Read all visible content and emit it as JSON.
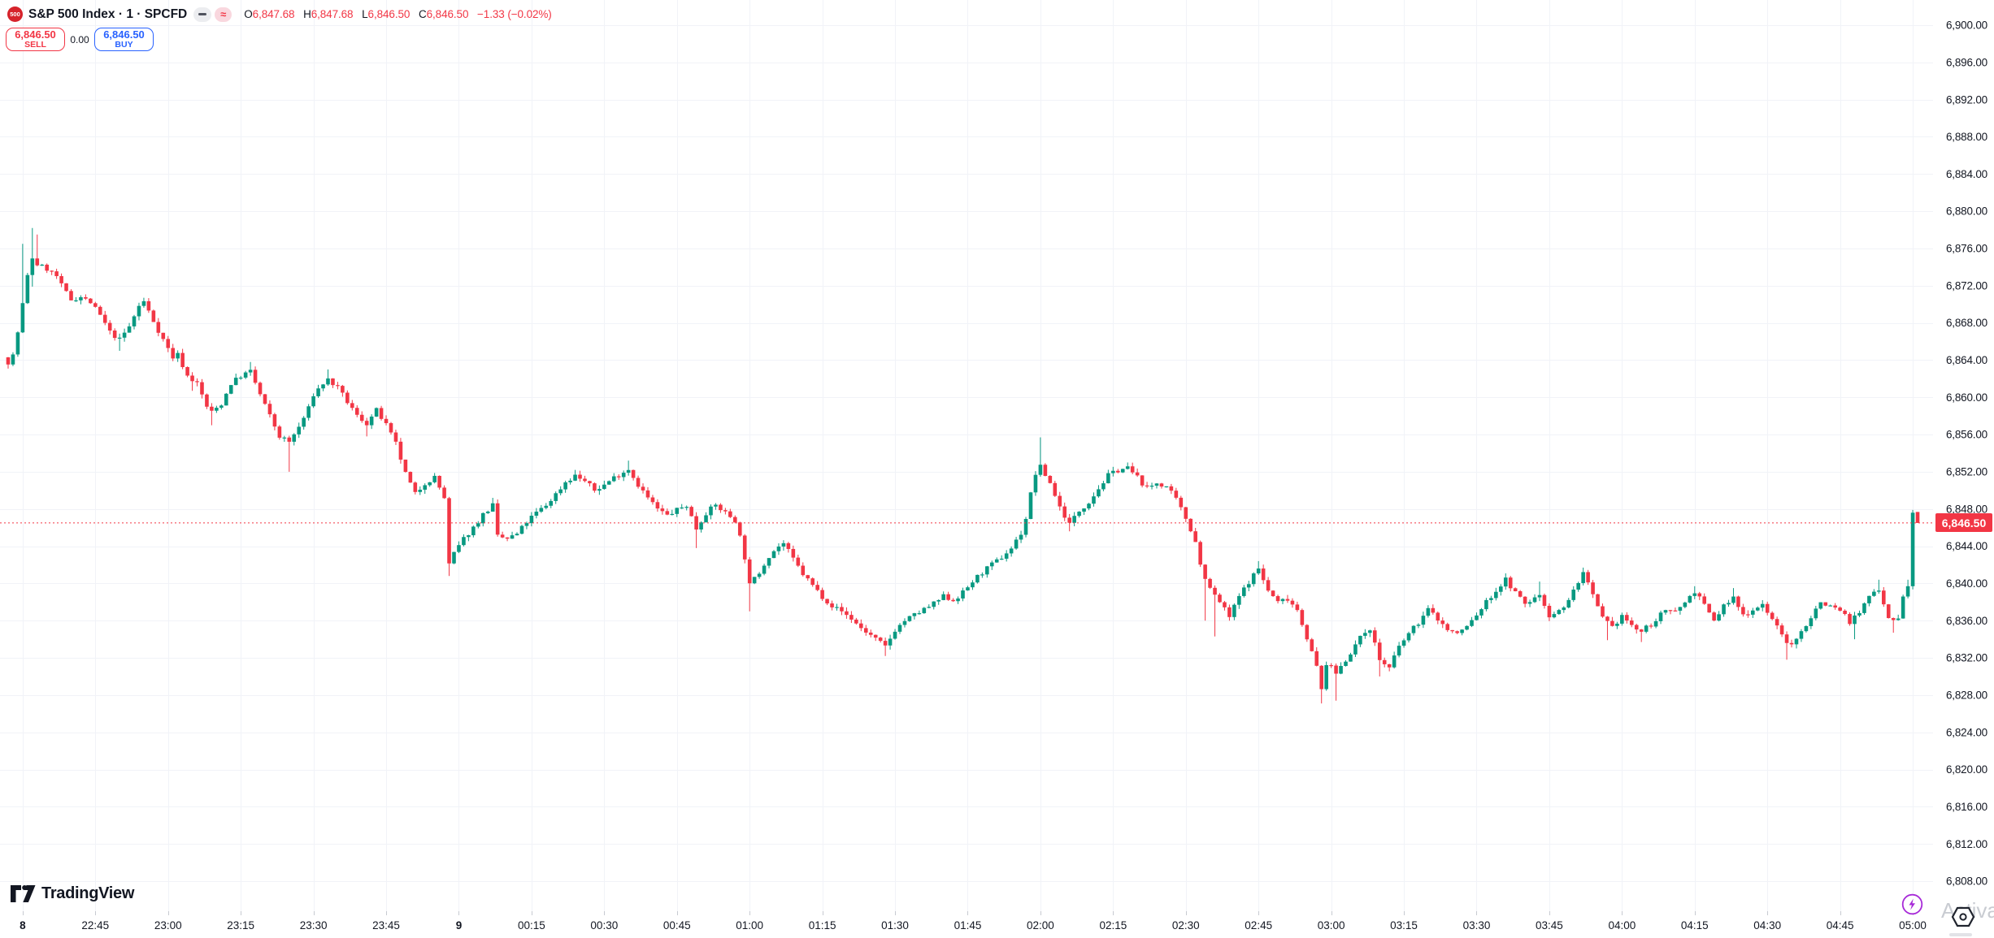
{
  "header": {
    "logo_text": "500",
    "title": "S&P 500 Index · 1 · SPCFD",
    "toggles": {
      "approx_glyph": "≈"
    },
    "ohlc": {
      "o_label": "O",
      "open": "6,847.68",
      "h_label": "H",
      "high": "6,847.68",
      "l_label": "L",
      "low": "6,846.50",
      "c_label": "C",
      "close": "6,846.50",
      "change": "−1.33 (−0.02%)"
    },
    "sell": {
      "price": "6,846.50",
      "label": "SELL"
    },
    "spread": "0.00",
    "buy": {
      "price": "6,846.50",
      "label": "BUY"
    }
  },
  "price_scale": {
    "current": "6,846.50"
  },
  "watermarks": {
    "brand": "TradingView",
    "corner": "Activa"
  },
  "colors": {
    "up": "#089981",
    "down": "#f23645",
    "sell_red": "#f23645",
    "buy_blue": "#2962ff",
    "price_line": "#f23645",
    "grid": "#f1f3f8",
    "axis_text": "#131722",
    "tick_stub": "#c7cad1",
    "logo_red": "#d6232b",
    "lightning_purple": "#a72ad8",
    "watermark_gray": "#c9ccd2"
  },
  "chart_data": {
    "type": "candlestick",
    "symbol": "S&P 500 Index",
    "interval": "1",
    "feed": "SPCFD",
    "legend_note": "1-minute OHLC candles, session 8 22:27 through 9 05:01",
    "current_price": 6846.5,
    "last_candle": {
      "open": 6847.68,
      "high": 6847.68,
      "low": 6846.5,
      "close": 6846.5
    },
    "y_axis": {
      "min": 6806,
      "max": 6902,
      "grid": true,
      "ticks": [
        {
          "v": 6900,
          "label": "6,900.00"
        },
        {
          "v": 6896,
          "label": "6,896.00"
        },
        {
          "v": 6892,
          "label": "6,892.00"
        },
        {
          "v": 6888,
          "label": "6,888.00"
        },
        {
          "v": 6884,
          "label": "6,884.00"
        },
        {
          "v": 6880,
          "label": "6,880.00"
        },
        {
          "v": 6876,
          "label": "6,876.00"
        },
        {
          "v": 6872,
          "label": "6,872.00"
        },
        {
          "v": 6868,
          "label": "6,868.00"
        },
        {
          "v": 6864,
          "label": "6,864.00"
        },
        {
          "v": 6860,
          "label": "6,860.00"
        },
        {
          "v": 6856,
          "label": "6,856.00"
        },
        {
          "v": 6852,
          "label": "6,852.00"
        },
        {
          "v": 6848,
          "label": "6,848.00"
        },
        {
          "v": 6844,
          "label": "6,844.00"
        },
        {
          "v": 6840,
          "label": "6,840.00"
        },
        {
          "v": 6836,
          "label": "6,836.00"
        },
        {
          "v": 6832,
          "label": "6,832.00"
        },
        {
          "v": 6828,
          "label": "6,828.00"
        },
        {
          "v": 6824,
          "label": "6,824.00"
        },
        {
          "v": 6820,
          "label": "6,820.00"
        },
        {
          "v": 6816,
          "label": "6,816.00"
        },
        {
          "v": 6812,
          "label": "6,812.00"
        },
        {
          "v": 6808,
          "label": "6,808.00"
        }
      ]
    },
    "x_axis": {
      "labels": [
        {
          "label": "8",
          "m": 3,
          "bold": true
        },
        {
          "label": "22:45",
          "m": 18
        },
        {
          "label": "23:00",
          "m": 33
        },
        {
          "label": "23:15",
          "m": 48
        },
        {
          "label": "23:30",
          "m": 63
        },
        {
          "label": "23:45",
          "m": 78
        },
        {
          "label": "9",
          "m": 93,
          "bold": true
        },
        {
          "label": "00:15",
          "m": 108
        },
        {
          "label": "00:30",
          "m": 123
        },
        {
          "label": "00:45",
          "m": 138
        },
        {
          "label": "01:00",
          "m": 153
        },
        {
          "label": "01:15",
          "m": 168
        },
        {
          "label": "01:30",
          "m": 183
        },
        {
          "label": "01:45",
          "m": 198
        },
        {
          "label": "02:00",
          "m": 213
        },
        {
          "label": "02:15",
          "m": 228
        },
        {
          "label": "02:30",
          "m": 243
        },
        {
          "label": "02:45",
          "m": 258
        },
        {
          "label": "03:00",
          "m": 273
        },
        {
          "label": "03:15",
          "m": 288
        },
        {
          "label": "03:30",
          "m": 303
        },
        {
          "label": "03:45",
          "m": 318
        },
        {
          "label": "04:00",
          "m": 333
        },
        {
          "label": "04:15",
          "m": 348
        },
        {
          "label": "04:30",
          "m": 363
        },
        {
          "label": "04:45",
          "m": 378
        },
        {
          "label": "05:00",
          "m": 393
        }
      ]
    },
    "anchors": [
      [
        0,
        6863.8
      ],
      [
        1,
        6864.5
      ],
      [
        2,
        6867.0
      ],
      [
        3,
        6870.0
      ],
      [
        4,
        6873.0
      ],
      [
        5,
        6875.0
      ],
      [
        6,
        6874.3
      ],
      [
        8,
        6873.8
      ],
      [
        10,
        6873.0
      ],
      [
        11,
        6872.0
      ],
      [
        13,
        6870.5
      ],
      [
        15,
        6870.8
      ],
      [
        17,
        6870.2
      ],
      [
        19,
        6868.8
      ],
      [
        21,
        6867.0
      ],
      [
        23,
        6866.2
      ],
      [
        25,
        6867.6
      ],
      [
        27,
        6869.8
      ],
      [
        28,
        6870.3
      ],
      [
        30,
        6868.2
      ],
      [
        32,
        6866.2
      ],
      [
        34,
        6864.3
      ],
      [
        35,
        6864.6
      ],
      [
        37,
        6862.3
      ],
      [
        39,
        6861.5
      ],
      [
        41,
        6859.0
      ],
      [
        42,
        6858.4
      ],
      [
        44,
        6859.3
      ],
      [
        46,
        6861.5
      ],
      [
        48,
        6862.3
      ],
      [
        50,
        6862.8
      ],
      [
        52,
        6860.3
      ],
      [
        54,
        6858.0
      ],
      [
        56,
        6855.8
      ],
      [
        58,
        6855.2
      ],
      [
        60,
        6856.8
      ],
      [
        62,
        6858.8
      ],
      [
        63,
        6860.3
      ],
      [
        65,
        6861.5
      ],
      [
        66,
        6861.9
      ],
      [
        68,
        6861.0
      ],
      [
        70,
        6859.5
      ],
      [
        72,
        6858.0
      ],
      [
        74,
        6857.2
      ],
      [
        76,
        6858.6
      ],
      [
        78,
        6857.0
      ],
      [
        80,
        6855.0
      ],
      [
        82,
        6851.8
      ],
      [
        84,
        6849.6
      ],
      [
        86,
        6850.8
      ],
      [
        88,
        6851.4
      ],
      [
        90,
        6849.2
      ],
      [
        91,
        6842.0
      ],
      [
        92,
        6843.2
      ],
      [
        94,
        6844.8
      ],
      [
        96,
        6846.0
      ],
      [
        98,
        6847.4
      ],
      [
        100,
        6848.4
      ],
      [
        101,
        6845.0
      ],
      [
        103,
        6844.8
      ],
      [
        105,
        6845.3
      ],
      [
        107,
        6846.6
      ],
      [
        109,
        6847.6
      ],
      [
        111,
        6848.4
      ],
      [
        113,
        6849.6
      ],
      [
        115,
        6850.9
      ],
      [
        117,
        6851.6
      ],
      [
        119,
        6851.0
      ],
      [
        121,
        6850.0
      ],
      [
        123,
        6850.6
      ],
      [
        125,
        6851.4
      ],
      [
        127,
        6852.0
      ],
      [
        128,
        6852.3
      ],
      [
        130,
        6850.6
      ],
      [
        132,
        6849.2
      ],
      [
        134,
        6848.0
      ],
      [
        136,
        6847.3
      ],
      [
        138,
        6847.9
      ],
      [
        140,
        6848.4
      ],
      [
        142,
        6845.9
      ],
      [
        144,
        6847.6
      ],
      [
        146,
        6848.4
      ],
      [
        148,
        6847.6
      ],
      [
        150,
        6846.8
      ],
      [
        151,
        6845.0
      ],
      [
        152,
        6842.8
      ],
      [
        153,
        6839.8
      ],
      [
        155,
        6841.2
      ],
      [
        157,
        6843.0
      ],
      [
        159,
        6844.0
      ],
      [
        160,
        6844.3
      ],
      [
        162,
        6842.6
      ],
      [
        164,
        6841.0
      ],
      [
        166,
        6839.8
      ],
      [
        168,
        6838.6
      ],
      [
        170,
        6837.6
      ],
      [
        172,
        6837.0
      ],
      [
        174,
        6836.2
      ],
      [
        176,
        6835.2
      ],
      [
        178,
        6834.4
      ],
      [
        180,
        6833.6
      ],
      [
        181,
        6833.2
      ],
      [
        183,
        6835.0
      ],
      [
        185,
        6836.0
      ],
      [
        187,
        6836.6
      ],
      [
        189,
        6837.2
      ],
      [
        191,
        6837.8
      ],
      [
        193,
        6838.6
      ],
      [
        195,
        6838.2
      ],
      [
        197,
        6839.0
      ],
      [
        199,
        6840.2
      ],
      [
        201,
        6841.2
      ],
      [
        203,
        6842.0
      ],
      [
        205,
        6842.8
      ],
      [
        207,
        6843.8
      ],
      [
        209,
        6845.4
      ],
      [
        210,
        6847.0
      ],
      [
        211,
        6849.6
      ],
      [
        212,
        6851.8
      ],
      [
        213,
        6852.5
      ],
      [
        215,
        6850.8
      ],
      [
        217,
        6848.2
      ],
      [
        219,
        6846.4
      ],
      [
        221,
        6847.8
      ],
      [
        223,
        6848.8
      ],
      [
        225,
        6850.2
      ],
      [
        227,
        6851.6
      ],
      [
        229,
        6852.2
      ],
      [
        231,
        6852.4
      ],
      [
        233,
        6851.4
      ],
      [
        235,
        6850.2
      ],
      [
        237,
        6850.8
      ],
      [
        239,
        6850.4
      ],
      [
        241,
        6849.0
      ],
      [
        243,
        6847.0
      ],
      [
        245,
        6844.6
      ],
      [
        246,
        6842.0
      ],
      [
        248,
        6839.4
      ],
      [
        250,
        6838.0
      ],
      [
        252,
        6836.4
      ],
      [
        254,
        6838.6
      ],
      [
        256,
        6840.2
      ],
      [
        258,
        6841.6
      ],
      [
        260,
        6839.2
      ],
      [
        262,
        6838.0
      ],
      [
        264,
        6838.4
      ],
      [
        266,
        6837.2
      ],
      [
        268,
        6834.2
      ],
      [
        270,
        6831.0
      ],
      [
        271,
        6828.6
      ],
      [
        272,
        6831.4
      ],
      [
        274,
        6830.4
      ],
      [
        276,
        6831.8
      ],
      [
        278,
        6833.4
      ],
      [
        280,
        6834.8
      ],
      [
        281,
        6835.2
      ],
      [
        283,
        6831.8
      ],
      [
        285,
        6830.9
      ],
      [
        287,
        6833.2
      ],
      [
        289,
        6834.6
      ],
      [
        291,
        6835.8
      ],
      [
        293,
        6837.2
      ],
      [
        295,
        6836.2
      ],
      [
        297,
        6835.0
      ],
      [
        299,
        6834.6
      ],
      [
        301,
        6835.4
      ],
      [
        303,
        6836.6
      ],
      [
        305,
        6838.0
      ],
      [
        307,
        6839.2
      ],
      [
        309,
        6840.4
      ],
      [
        311,
        6839.0
      ],
      [
        313,
        6837.8
      ],
      [
        315,
        6838.4
      ],
      [
        316,
        6838.8
      ],
      [
        318,
        6836.6
      ],
      [
        320,
        6837.0
      ],
      [
        322,
        6838.2
      ],
      [
        324,
        6840.2
      ],
      [
        325,
        6841.1
      ],
      [
        327,
        6838.6
      ],
      [
        329,
        6836.2
      ],
      [
        331,
        6835.2
      ],
      [
        333,
        6836.6
      ],
      [
        335,
        6835.4
      ],
      [
        337,
        6834.8
      ],
      [
        339,
        6835.6
      ],
      [
        341,
        6836.6
      ],
      [
        343,
        6837.2
      ],
      [
        345,
        6837.4
      ],
      [
        347,
        6838.6
      ],
      [
        348,
        6839.2
      ],
      [
        350,
        6837.6
      ],
      [
        352,
        6836.0
      ],
      [
        354,
        6837.6
      ],
      [
        356,
        6838.4
      ],
      [
        358,
        6836.6
      ],
      [
        360,
        6837.2
      ],
      [
        362,
        6837.8
      ],
      [
        364,
        6836.2
      ],
      [
        366,
        6834.4
      ],
      [
        368,
        6833.2
      ],
      [
        370,
        6834.8
      ],
      [
        372,
        6836.4
      ],
      [
        374,
        6838.0
      ],
      [
        376,
        6837.6
      ],
      [
        378,
        6837.2
      ],
      [
        380,
        6835.9
      ],
      [
        382,
        6836.8
      ],
      [
        384,
        6838.6
      ],
      [
        386,
        6839.5
      ],
      [
        388,
        6836.4
      ],
      [
        390,
        6836.1
      ],
      [
        391,
        6838.8
      ],
      [
        392,
        6839.7
      ],
      [
        393,
        6847.6
      ],
      [
        394,
        6846.5
      ]
    ],
    "wick_events": [
      [
        3,
        6876.5,
        "h"
      ],
      [
        5,
        6878.2,
        "h"
      ],
      [
        5,
        6871.9,
        "l"
      ],
      [
        6,
        6877.5,
        "h"
      ],
      [
        23,
        6865.0,
        "l"
      ],
      [
        38,
        6860.7,
        "l"
      ],
      [
        42,
        6857.0,
        "l"
      ],
      [
        50,
        6863.8,
        "h"
      ],
      [
        58,
        6852.0,
        "l"
      ],
      [
        66,
        6863.0,
        "h"
      ],
      [
        74,
        6855.8,
        "l"
      ],
      [
        91,
        6840.8,
        "l"
      ],
      [
        100,
        6849.2,
        "h"
      ],
      [
        117,
        6852.2,
        "h"
      ],
      [
        128,
        6853.2,
        "h"
      ],
      [
        142,
        6843.8,
        "l"
      ],
      [
        153,
        6837.0,
        "l"
      ],
      [
        181,
        6832.2,
        "l"
      ],
      [
        213,
        6855.7,
        "h"
      ],
      [
        219,
        6845.6,
        "l"
      ],
      [
        231,
        6853.0,
        "h"
      ],
      [
        247,
        6836.0,
        "l"
      ],
      [
        249,
        6834.3,
        "l"
      ],
      [
        258,
        6842.4,
        "h"
      ],
      [
        271,
        6827.1,
        "l"
      ],
      [
        274,
        6827.4,
        "l"
      ],
      [
        283,
        6830.0,
        "l"
      ],
      [
        309,
        6841.0,
        "h"
      ],
      [
        316,
        6840.2,
        "h"
      ],
      [
        325,
        6841.7,
        "h"
      ],
      [
        330,
        6833.9,
        "l"
      ],
      [
        337,
        6833.7,
        "l"
      ],
      [
        348,
        6839.7,
        "h"
      ],
      [
        356,
        6839.5,
        "h"
      ],
      [
        367,
        6831.8,
        "l"
      ],
      [
        381,
        6834.0,
        "l"
      ],
      [
        386,
        6840.4,
        "h"
      ],
      [
        389,
        6834.7,
        "l"
      ],
      [
        392,
        6840.4,
        "h"
      ],
      [
        393,
        6847.9,
        "h"
      ]
    ]
  }
}
